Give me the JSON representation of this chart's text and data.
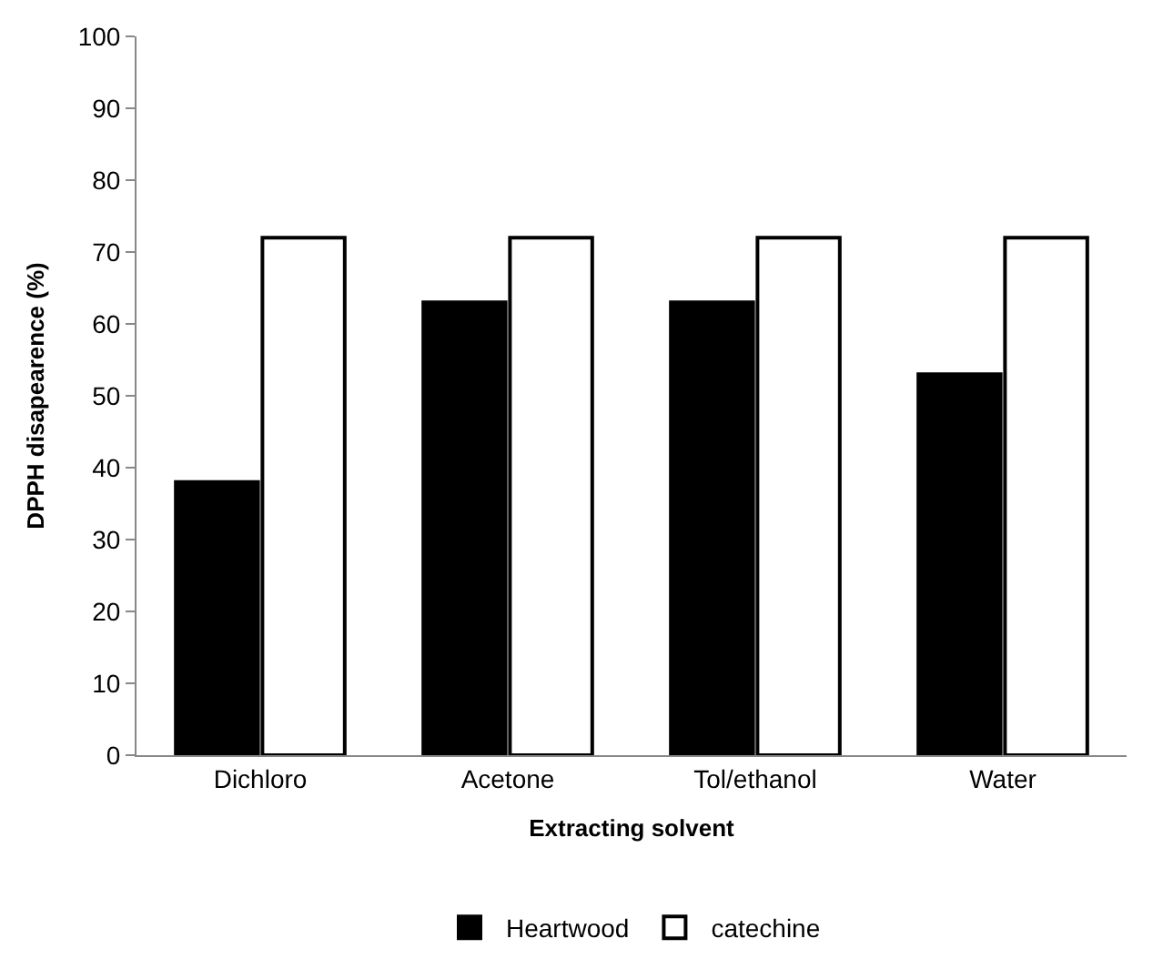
{
  "chart_data": {
    "type": "bar",
    "xlabel": "Extracting solvent",
    "ylabel": "DPPH disapearence (%)",
    "categories": [
      "Dichloro",
      "Acetone",
      "Tol/ethanol",
      "Water"
    ],
    "series": [
      {
        "name": "Heartwood",
        "color": "#000000",
        "values": [
          38,
          63,
          63,
          53
        ]
      },
      {
        "name": "catechine",
        "color": "#ffffff",
        "values": [
          72,
          72,
          72,
          72
        ]
      }
    ],
    "ylim": [
      0,
      100
    ],
    "yticks": [
      0,
      10,
      20,
      30,
      40,
      50,
      60,
      70,
      80,
      90,
      100
    ],
    "legend": "bottom"
  }
}
